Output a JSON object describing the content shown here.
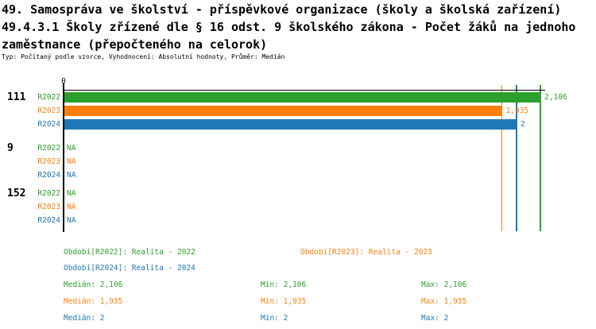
{
  "title": {
    "line1": "49. Samospráva ve školství - příspěvkové organizace (školy a školská zařízení)",
    "line2": "49.4.3.1 Školy zřízené dle § 16 odst. 9 školského zákona - Počet žáků na jednoho",
    "line3": "zaměstnance (přepočteného na celorok)",
    "meta": "Typ: Počítaný podle vzorce, Vyhodnocení: Absolutní hodnoty, Průměr: Medián"
  },
  "colors": {
    "R2022": "#2ca02c",
    "R2023": "#ff7f0e",
    "R2024": "#1f77b4",
    "axis": "#000000"
  },
  "chart_data": {
    "type": "bar",
    "orientation": "horizontal",
    "title": "49.4.3.1 Školy zřízené dle § 16 odst. 9 školského zákona - Počet žáků na jednoho zaměstnance (přepočteného na celorok)",
    "xlim": [
      0,
      2.13
    ],
    "ticks": [
      "0"
    ],
    "grid": false,
    "legend_position": "bottom",
    "series_names": [
      "R2022",
      "R2023",
      "R2024"
    ],
    "groups": [
      {
        "label": "111",
        "bars": [
          {
            "series": "R2022",
            "value": 2.106,
            "value_label": "2,106"
          },
          {
            "series": "R2023",
            "value": 1.935,
            "value_label": "1,935"
          },
          {
            "series": "R2024",
            "value": 2.0,
            "value_label": "2"
          }
        ]
      },
      {
        "label": "9",
        "bars": [
          {
            "series": "R2022",
            "value": null,
            "value_label": "NA"
          },
          {
            "series": "R2023",
            "value": null,
            "value_label": "NA"
          },
          {
            "series": "R2024",
            "value": null,
            "value_label": "NA"
          }
        ]
      },
      {
        "label": "152",
        "bars": [
          {
            "series": "R2022",
            "value": null,
            "value_label": "NA"
          },
          {
            "series": "R2023",
            "value": null,
            "value_label": "NA"
          },
          {
            "series": "R2024",
            "value": null,
            "value_label": "NA"
          }
        ]
      }
    ],
    "median_lines": [
      {
        "series": "R2022",
        "value": 2.106
      },
      {
        "series": "R2023",
        "value": 1.935
      },
      {
        "series": "R2024",
        "value": 2.0
      }
    ]
  },
  "legend": {
    "items": [
      {
        "series": "R2022",
        "text": "Období[R2022]: Realita - 2022"
      },
      {
        "series": "R2023",
        "text": "Období[R2023]: Realita - 2023"
      },
      {
        "series": "R2024",
        "text": "Období[R2024]: Realita - 2024"
      }
    ]
  },
  "stats": {
    "metric_labels": [
      "Medián",
      "Min",
      "Max"
    ],
    "rows": [
      {
        "series": "R2022",
        "values": [
          "2,106",
          "2,106",
          "2,106"
        ]
      },
      {
        "series": "R2023",
        "values": [
          "1,935",
          "1,935",
          "1,935"
        ]
      },
      {
        "series": "R2024",
        "values": [
          "2",
          "2",
          "2"
        ]
      }
    ]
  }
}
